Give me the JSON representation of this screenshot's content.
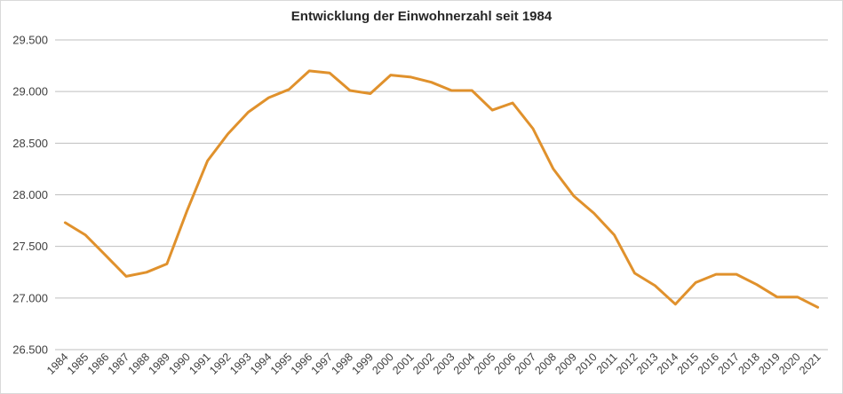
{
  "chart_data": {
    "type": "line",
    "title": "Entwicklung der Einwohnerzahl seit 1984",
    "xlabel": "",
    "ylabel": "",
    "ylim": [
      26500,
      29500
    ],
    "yticks": [
      26500,
      27000,
      27500,
      28000,
      28500,
      29000,
      29500
    ],
    "ytick_labels": [
      "26.500",
      "27.000",
      "27.500",
      "28.000",
      "28.500",
      "29.000",
      "29.500"
    ],
    "grid": true,
    "legend": "none",
    "line_color": "#e0912c",
    "grid_color": "#bfbfbf",
    "categories": [
      "1984",
      "1985",
      "1986",
      "1987",
      "1988",
      "1989",
      "1990",
      "1991",
      "1992",
      "1993",
      "1994",
      "1995",
      "1996",
      "1997",
      "1998",
      "1999",
      "2000",
      "2001",
      "2002",
      "2003",
      "2004",
      "2005",
      "2006",
      "2007",
      "2008",
      "2009",
      "2010",
      "2011",
      "2012",
      "2013",
      "2014",
      "2015",
      "2016",
      "2017",
      "2018",
      "2019",
      "2020",
      "2021"
    ],
    "series": [
      {
        "values": [
          27730,
          27610,
          27410,
          27210,
          27250,
          27330,
          27850,
          28330,
          28590,
          28800,
          28940,
          29020,
          29200,
          29180,
          29010,
          28980,
          29160,
          29140,
          29090,
          29010,
          29010,
          28820,
          28890,
          28640,
          28250,
          27990,
          27820,
          27610,
          27240,
          27120,
          26940,
          27150,
          27230,
          27230,
          27130,
          27010,
          27010,
          26910
        ]
      }
    ]
  }
}
